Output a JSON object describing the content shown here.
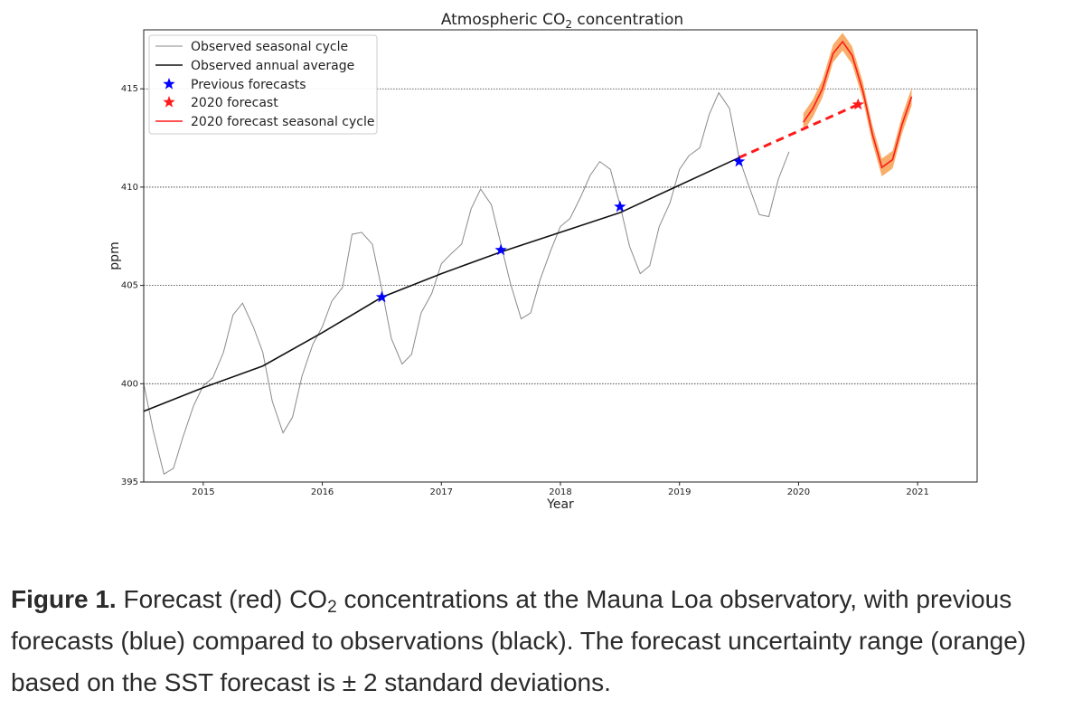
{
  "caption": {
    "label": "Figure 1.",
    "text_before": " Forecast (red) CO",
    "subscript": "2",
    "text_after": " concentrations at the Mauna Loa observatory, with previous forecasts (blue) compared to observations (black). The forecast uncertainty range (orange) based on the SST forecast is ± 2 standard deviations."
  },
  "colors": {
    "seasonal": "#8a8a8a",
    "annual": "#111111",
    "previous": "#0000ff",
    "forecast": "#ff1a1a",
    "band": "#f7a45a",
    "grid": "#333333"
  },
  "chart_data": {
    "type": "line",
    "title": "Atmospheric CO",
    "title_sub": "2",
    "title_after": " concentration",
    "xlabel": "Year",
    "ylabel": "ppm",
    "xlim": [
      2014.5,
      2021.5
    ],
    "ylim": [
      395,
      418
    ],
    "xticks": [
      2015,
      2016,
      2017,
      2018,
      2019,
      2020,
      2021
    ],
    "yticks": [
      395,
      400,
      405,
      410,
      415
    ],
    "grid": "horizontal dotted",
    "legend_position": "top-left",
    "legend": [
      "Observed seasonal cycle",
      "Observed annual average",
      "Previous forecasts",
      "2020 forecast",
      "2020 forecast seasonal cycle"
    ],
    "observed_seasonal": {
      "x": [
        2014.5,
        2014.58,
        2014.67,
        2014.75,
        2014.83,
        2014.92,
        2015.0,
        2015.08,
        2015.17,
        2015.25,
        2015.33,
        2015.42,
        2015.5,
        2015.58,
        2015.67,
        2015.75,
        2015.83,
        2015.92,
        2016.0,
        2016.08,
        2016.17,
        2016.25,
        2016.33,
        2016.42,
        2016.5,
        2016.58,
        2016.67,
        2016.75,
        2016.83,
        2016.92,
        2017.0,
        2017.08,
        2017.17,
        2017.25,
        2017.33,
        2017.42,
        2017.5,
        2017.58,
        2017.67,
        2017.75,
        2017.83,
        2017.92,
        2018.0,
        2018.08,
        2018.17,
        2018.25,
        2018.33,
        2018.42,
        2018.5,
        2018.58,
        2018.67,
        2018.75,
        2018.83,
        2018.92,
        2019.0,
        2019.08,
        2019.17,
        2019.25,
        2019.33,
        2019.42,
        2019.5,
        2019.58,
        2019.67,
        2019.75,
        2019.83,
        2019.92
      ],
      "y": [
        400.0,
        397.6,
        395.4,
        395.7,
        397.3,
        398.9,
        399.9,
        400.3,
        401.6,
        403.5,
        404.1,
        402.9,
        401.6,
        399.1,
        397.5,
        398.3,
        400.4,
        402.0,
        402.9,
        404.2,
        404.9,
        407.6,
        407.7,
        407.1,
        404.8,
        402.3,
        401.0,
        401.5,
        403.6,
        404.6,
        406.1,
        406.6,
        407.1,
        408.9,
        409.9,
        409.1,
        407.1,
        405.1,
        403.3,
        403.6,
        405.3,
        406.8,
        408.0,
        408.4,
        409.5,
        410.6,
        411.3,
        410.9,
        409.1,
        407.0,
        405.6,
        406.0,
        408.0,
        409.2,
        410.9,
        411.6,
        412.0,
        413.7,
        414.8,
        414.0,
        411.5,
        410.1,
        408.6,
        408.5,
        410.4,
        411.8
      ]
    },
    "observed_annual": {
      "x": [
        2014.5,
        2015.0,
        2015.5,
        2016.0,
        2016.5,
        2017.0,
        2017.5,
        2018.0,
        2018.5,
        2019.0,
        2019.5
      ],
      "y": [
        398.6,
        399.8,
        400.9,
        402.6,
        404.4,
        405.6,
        406.7,
        407.7,
        408.7,
        410.1,
        411.5
      ]
    },
    "previous_forecasts": {
      "x": [
        2016.5,
        2017.5,
        2018.5,
        2019.5
      ],
      "y": [
        404.4,
        406.8,
        409.0,
        411.3
      ]
    },
    "forecast_2020": {
      "x": 2020.5,
      "y": 414.2
    },
    "forecast_trend": {
      "x": [
        2019.5,
        2020.5
      ],
      "y": [
        411.5,
        414.2
      ]
    },
    "forecast_seasonal": {
      "x": [
        2020.04,
        2020.12,
        2020.2,
        2020.29,
        2020.37,
        2020.45,
        2020.54,
        2020.62,
        2020.7,
        2020.79,
        2020.87,
        2020.95
      ],
      "y": [
        413.3,
        414.0,
        415.0,
        416.8,
        417.4,
        416.7,
        414.9,
        412.7,
        411.0,
        411.4,
        413.2,
        414.6
      ],
      "band": 0.45
    }
  }
}
